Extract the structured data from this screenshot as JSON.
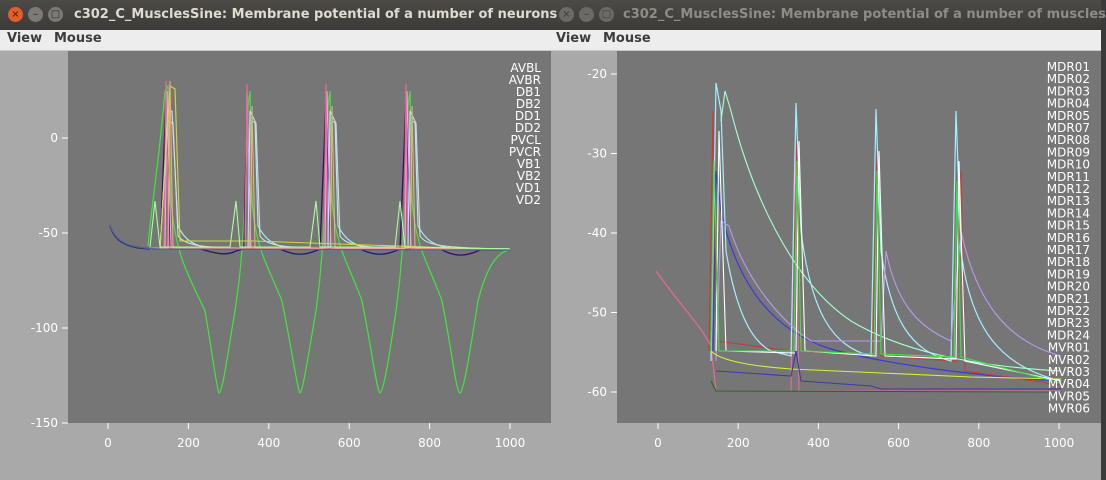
{
  "left_window": {
    "title": "c302_C_MusclesSine: Membrane potential of a number of neurons",
    "menu": {
      "view": "View",
      "mouse": "Mouse"
    },
    "buttons": {
      "close": "×",
      "minimize": "–",
      "maximize": "□"
    },
    "plot_background": "#767676",
    "y_ticks": [
      {
        "label": "0",
        "value": 0
      },
      {
        "label": "-50",
        "value": -50
      },
      {
        "label": "-100",
        "value": -100
      },
      {
        "label": "-150",
        "value": -150
      }
    ],
    "x_ticks": [
      {
        "label": "0",
        "value": 0
      },
      {
        "label": "200",
        "value": 200
      },
      {
        "label": "400",
        "value": 400
      },
      {
        "label": "600",
        "value": 600
      },
      {
        "label": "800",
        "value": 800
      },
      {
        "label": "1000",
        "value": 1000
      }
    ],
    "legend": [
      {
        "name": "AVBL",
        "color": "#3ee63e"
      },
      {
        "name": "AVBR",
        "color": "#3b0f6e"
      },
      {
        "name": "DB1",
        "color": "#f5a0f0"
      },
      {
        "name": "DB2",
        "color": "#ef6a96"
      },
      {
        "name": "DD1",
        "color": "#a4f0ff"
      },
      {
        "name": "DD2",
        "color": "#9fd6ef"
      },
      {
        "name": "PVCL",
        "color": "#dadada"
      },
      {
        "name": "PVCR",
        "color": "#9b1ad1"
      },
      {
        "name": "VB1",
        "color": "#d6d63c"
      },
      {
        "name": "VB2",
        "color": "#f5a878"
      },
      {
        "name": "VD1",
        "color": "#a8ff9a"
      },
      {
        "name": "VD2",
        "color": "#4a6696"
      }
    ]
  },
  "right_window": {
    "title": "c302_C_MusclesSine: Membrane potential of a number of muscles",
    "menu": {
      "view": "View",
      "mouse": "Mouse"
    },
    "buttons": {
      "close": "×",
      "minimize": "–",
      "maximize": "□"
    },
    "plot_background": "#767676",
    "y_ticks": [
      {
        "label": "-20",
        "value": -20
      },
      {
        "label": "-30",
        "value": -30
      },
      {
        "label": "-40",
        "value": -40
      },
      {
        "label": "-50",
        "value": -50
      },
      {
        "label": "-60",
        "value": -60
      }
    ],
    "x_ticks": [
      {
        "label": "0",
        "value": 0
      },
      {
        "label": "200",
        "value": 200
      },
      {
        "label": "400",
        "value": 400
      },
      {
        "label": "600",
        "value": 600
      },
      {
        "label": "800",
        "value": 800
      },
      {
        "label": "1000",
        "value": 1000
      }
    ],
    "legend": [
      {
        "name": "MDR01",
        "color": "#2a2a9a"
      },
      {
        "name": "MDR02",
        "color": "#c63a3a"
      },
      {
        "name": "MDR03",
        "color": "#ef6a96"
      },
      {
        "name": "MDR04",
        "color": "#3ed6a0"
      },
      {
        "name": "MDR05",
        "color": "#a4f0ff"
      },
      {
        "name": "MDR07",
        "color": "#c8a070"
      },
      {
        "name": "MDR08",
        "color": "#3ee63e"
      },
      {
        "name": "MDR09",
        "color": "#b89aee"
      },
      {
        "name": "MDR10",
        "color": "#b0a0d0"
      },
      {
        "name": "MDR11",
        "color": "#e8e8e8"
      },
      {
        "name": "MDR12",
        "color": "#e23a5a"
      },
      {
        "name": "MDR13",
        "color": "#a8ffd0"
      },
      {
        "name": "MDR14",
        "color": "#8ae8d0"
      },
      {
        "name": "MDR15",
        "color": "#3ee6d0"
      },
      {
        "name": "MDR16",
        "color": "#b0107a"
      },
      {
        "name": "MDR17",
        "color": "#f07af0"
      },
      {
        "name": "MDR18",
        "color": "#3a3ab0"
      },
      {
        "name": "MDR19",
        "color": "#c8c878"
      },
      {
        "name": "MDR20",
        "color": "#1a6a1a"
      },
      {
        "name": "MDR21",
        "color": "#dadada"
      },
      {
        "name": "MDR22",
        "color": "#9a78d0"
      },
      {
        "name": "MDR23",
        "color": "#8a5a8a"
      },
      {
        "name": "MDR24",
        "color": "#f59a78"
      },
      {
        "name": "MVR01",
        "color": "#d6f03c"
      },
      {
        "name": "MVR02",
        "color": "#ffffff"
      },
      {
        "name": "MVR03",
        "color": "#3a3a8a"
      },
      {
        "name": "MVR04",
        "color": "#3ee63e"
      },
      {
        "name": "MVR05",
        "color": "#d0b0f0"
      },
      {
        "name": "MVR06",
        "color": "#ffffff"
      }
    ]
  }
}
